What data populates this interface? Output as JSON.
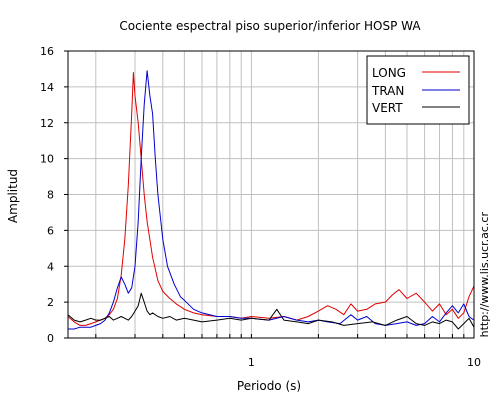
{
  "chart_data": {
    "type": "line",
    "title": "Cociente espectral piso superior/inferior  HOSP WA",
    "xlabel": "Periodo (s)",
    "ylabel": "Amplitud",
    "xscale": "log",
    "xlim": [
      0.15,
      10
    ],
    "ylim": [
      0,
      16
    ],
    "x_tick_labels": [
      {
        "value": 1,
        "label": "1"
      },
      {
        "value": 10,
        "label": "10"
      }
    ],
    "y_ticks": [
      0,
      2,
      4,
      6,
      8,
      10,
      12,
      14,
      16
    ],
    "grid": true,
    "legend_position": "top-right",
    "series": [
      {
        "name": "LONG",
        "color": "#e00000",
        "points": [
          [
            0.15,
            1.2
          ],
          [
            0.16,
            0.9
          ],
          [
            0.17,
            0.7
          ],
          [
            0.18,
            0.7
          ],
          [
            0.19,
            0.8
          ],
          [
            0.2,
            0.9
          ],
          [
            0.21,
            1.0
          ],
          [
            0.22,
            1.1
          ],
          [
            0.23,
            1.3
          ],
          [
            0.24,
            1.6
          ],
          [
            0.25,
            2.2
          ],
          [
            0.26,
            3.5
          ],
          [
            0.27,
            5.5
          ],
          [
            0.28,
            8.5
          ],
          [
            0.29,
            12.5
          ],
          [
            0.295,
            14.8
          ],
          [
            0.3,
            13.5
          ],
          [
            0.31,
            12.0
          ],
          [
            0.32,
            10.0
          ],
          [
            0.33,
            8.0
          ],
          [
            0.34,
            6.5
          ],
          [
            0.36,
            4.5
          ],
          [
            0.38,
            3.2
          ],
          [
            0.4,
            2.6
          ],
          [
            0.43,
            2.2
          ],
          [
            0.46,
            1.9
          ],
          [
            0.5,
            1.6
          ],
          [
            0.55,
            1.4
          ],
          [
            0.6,
            1.3
          ],
          [
            0.7,
            1.2
          ],
          [
            0.8,
            1.2
          ],
          [
            0.9,
            1.1
          ],
          [
            1.0,
            1.2
          ],
          [
            1.2,
            1.1
          ],
          [
            1.4,
            1.2
          ],
          [
            1.6,
            1.0
          ],
          [
            1.8,
            1.2
          ],
          [
            2.0,
            1.5
          ],
          [
            2.2,
            1.8
          ],
          [
            2.4,
            1.6
          ],
          [
            2.6,
            1.3
          ],
          [
            2.8,
            1.9
          ],
          [
            3.0,
            1.5
          ],
          [
            3.3,
            1.6
          ],
          [
            3.6,
            1.9
          ],
          [
            4.0,
            2.0
          ],
          [
            4.3,
            2.4
          ],
          [
            4.6,
            2.7
          ],
          [
            5.0,
            2.2
          ],
          [
            5.5,
            2.5
          ],
          [
            6.0,
            2.0
          ],
          [
            6.5,
            1.5
          ],
          [
            7.0,
            1.9
          ],
          [
            7.5,
            1.3
          ],
          [
            8.0,
            1.6
          ],
          [
            8.5,
            1.1
          ],
          [
            9.0,
            1.4
          ],
          [
            9.5,
            2.3
          ],
          [
            10.0,
            2.9
          ]
        ]
      },
      {
        "name": "TRAN",
        "color": "#0000d0",
        "points": [
          [
            0.15,
            0.5
          ],
          [
            0.16,
            0.5
          ],
          [
            0.17,
            0.6
          ],
          [
            0.18,
            0.6
          ],
          [
            0.19,
            0.6
          ],
          [
            0.2,
            0.7
          ],
          [
            0.21,
            0.8
          ],
          [
            0.22,
            1.0
          ],
          [
            0.23,
            1.4
          ],
          [
            0.24,
            2.0
          ],
          [
            0.25,
            2.8
          ],
          [
            0.26,
            3.4
          ],
          [
            0.27,
            3.0
          ],
          [
            0.28,
            2.5
          ],
          [
            0.29,
            2.8
          ],
          [
            0.3,
            4.0
          ],
          [
            0.31,
            6.5
          ],
          [
            0.32,
            10.0
          ],
          [
            0.33,
            13.0
          ],
          [
            0.34,
            14.9
          ],
          [
            0.35,
            13.5
          ],
          [
            0.36,
            12.5
          ],
          [
            0.37,
            10.0
          ],
          [
            0.38,
            8.0
          ],
          [
            0.4,
            5.5
          ],
          [
            0.42,
            4.0
          ],
          [
            0.45,
            3.0
          ],
          [
            0.48,
            2.3
          ],
          [
            0.5,
            2.1
          ],
          [
            0.55,
            1.6
          ],
          [
            0.6,
            1.4
          ],
          [
            0.7,
            1.2
          ],
          [
            0.8,
            1.2
          ],
          [
            0.9,
            1.1
          ],
          [
            1.0,
            1.1
          ],
          [
            1.2,
            1.0
          ],
          [
            1.4,
            1.2
          ],
          [
            1.6,
            1.0
          ],
          [
            1.8,
            0.9
          ],
          [
            2.0,
            1.0
          ],
          [
            2.2,
            0.9
          ],
          [
            2.5,
            0.8
          ],
          [
            2.8,
            1.3
          ],
          [
            3.0,
            1.0
          ],
          [
            3.3,
            1.2
          ],
          [
            3.6,
            0.8
          ],
          [
            4.0,
            0.7
          ],
          [
            4.5,
            0.8
          ],
          [
            5.0,
            0.9
          ],
          [
            5.5,
            0.7
          ],
          [
            6.0,
            0.8
          ],
          [
            6.5,
            1.2
          ],
          [
            7.0,
            0.9
          ],
          [
            7.5,
            1.4
          ],
          [
            8.0,
            1.8
          ],
          [
            8.5,
            1.4
          ],
          [
            9.0,
            1.9
          ],
          [
            9.5,
            1.2
          ],
          [
            10.0,
            1.0
          ]
        ]
      },
      {
        "name": "VERT",
        "color": "#000000",
        "points": [
          [
            0.15,
            1.3
          ],
          [
            0.16,
            1.0
          ],
          [
            0.17,
            0.9
          ],
          [
            0.18,
            1.0
          ],
          [
            0.19,
            1.1
          ],
          [
            0.2,
            1.0
          ],
          [
            0.21,
            1.0
          ],
          [
            0.22,
            1.1
          ],
          [
            0.23,
            1.2
          ],
          [
            0.24,
            1.0
          ],
          [
            0.25,
            1.1
          ],
          [
            0.26,
            1.2
          ],
          [
            0.27,
            1.1
          ],
          [
            0.28,
            1.0
          ],
          [
            0.29,
            1.2
          ],
          [
            0.3,
            1.5
          ],
          [
            0.31,
            1.8
          ],
          [
            0.32,
            2.5
          ],
          [
            0.33,
            2.0
          ],
          [
            0.34,
            1.5
          ],
          [
            0.35,
            1.3
          ],
          [
            0.36,
            1.4
          ],
          [
            0.38,
            1.2
          ],
          [
            0.4,
            1.1
          ],
          [
            0.43,
            1.2
          ],
          [
            0.46,
            1.0
          ],
          [
            0.5,
            1.1
          ],
          [
            0.55,
            1.0
          ],
          [
            0.6,
            0.9
          ],
          [
            0.7,
            1.0
          ],
          [
            0.8,
            1.1
          ],
          [
            0.9,
            1.0
          ],
          [
            1.0,
            1.1
          ],
          [
            1.2,
            1.0
          ],
          [
            1.3,
            1.6
          ],
          [
            1.4,
            1.0
          ],
          [
            1.6,
            0.9
          ],
          [
            1.8,
            0.8
          ],
          [
            2.0,
            1.0
          ],
          [
            2.3,
            0.9
          ],
          [
            2.6,
            0.7
          ],
          [
            3.0,
            0.8
          ],
          [
            3.5,
            0.9
          ],
          [
            4.0,
            0.7
          ],
          [
            4.5,
            1.0
          ],
          [
            5.0,
            1.2
          ],
          [
            5.5,
            0.8
          ],
          [
            6.0,
            0.7
          ],
          [
            6.5,
            0.9
          ],
          [
            7.0,
            0.8
          ],
          [
            7.5,
            1.0
          ],
          [
            8.0,
            0.9
          ],
          [
            8.5,
            0.5
          ],
          [
            9.0,
            0.8
          ],
          [
            9.5,
            1.1
          ],
          [
            10.0,
            0.6
          ]
        ]
      }
    ]
  },
  "side_url": "http://www.lis.ucr.ac.cr"
}
